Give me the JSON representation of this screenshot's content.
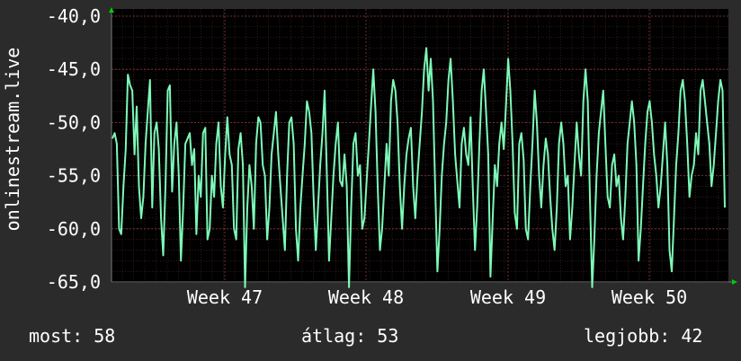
{
  "chart_data": {
    "type": "line",
    "ylabel": "onlinestream.live",
    "ylim": [
      -65,
      -40
    ],
    "y_ticks": [
      "-40,0",
      "-45,0",
      "-50,0",
      "-55,0",
      "-60,0",
      "-65,0"
    ],
    "x_ticks": [
      "Week 47",
      "Week 48",
      "Week 49",
      "Week 50"
    ],
    "grid": true,
    "colors": {
      "line": "#7df9b8",
      "plot_bg": "#000000",
      "page_bg": "#2b2b2b",
      "grid": "#5a2a2a",
      "axis_arrow": "#00cc00"
    },
    "series": [
      {
        "values": [
          -51.5,
          -51,
          -52,
          -60,
          -60.5,
          -56,
          -52.5,
          -45.5,
          -46.5,
          -47,
          -53,
          -48.5,
          -56,
          -59,
          -57,
          -52,
          -49,
          -46,
          -58,
          -51,
          -50,
          -52.5,
          -59,
          -62.5,
          -56,
          -47,
          -46.5,
          -56.5,
          -52,
          -50,
          -55,
          -63,
          -58,
          -52,
          -51.5,
          -51,
          -54,
          -52.5,
          -60.5,
          -55,
          -57,
          -51,
          -50.5,
          -61,
          -60,
          -55,
          -57,
          -52,
          -50,
          -56,
          -58,
          -53,
          -49.5,
          -53,
          -54,
          -60,
          -61,
          -52.5,
          -51,
          -54,
          -65.5,
          -58,
          -54,
          -56,
          -60,
          -52,
          -49.5,
          -50,
          -54,
          -55,
          -61,
          -58,
          -53,
          -51,
          -49,
          -53,
          -56,
          -59,
          -62,
          -55,
          -50,
          -49.5,
          -52,
          -60,
          -63,
          -58,
          -55,
          -52,
          -48,
          -49,
          -51,
          -57,
          -62,
          -58,
          -54,
          -51,
          -47,
          -55,
          -63,
          -59,
          -55,
          -52,
          -50,
          -55.5,
          -56,
          -53,
          -56,
          -65.5,
          -58,
          -52,
          -51,
          -55,
          -54,
          -60,
          -59,
          -55.5,
          -52,
          -48.5,
          -45,
          -49,
          -56,
          -62,
          -60,
          -56,
          -52,
          -55,
          -48,
          -46,
          -47,
          -50,
          -56,
          -60,
          -56,
          -53,
          -51.5,
          -50.5,
          -56,
          -59,
          -55,
          -52,
          -49,
          -45,
          -43,
          -47,
          -44,
          -48,
          -56,
          -64,
          -60,
          -55,
          -52,
          -50,
          -46,
          -44,
          -48,
          -53,
          -55.5,
          -58,
          -52,
          -50.5,
          -53,
          -54,
          -49.5,
          -56,
          -62,
          -58,
          -52,
          -47,
          -45,
          -49,
          -53,
          -64.5,
          -59,
          -54,
          -56,
          -52,
          -50,
          -52.5,
          -48.5,
          -44,
          -47,
          -52,
          -58.5,
          -60,
          -52,
          -51,
          -53.5,
          -60,
          -61,
          -56,
          -52,
          -47,
          -50,
          -55,
          -58,
          -54,
          -51.5,
          -53,
          -57,
          -60,
          -62,
          -58,
          -52,
          -50,
          -52,
          -56,
          -55,
          -61,
          -58,
          -54,
          -50,
          -53,
          -55,
          -48,
          -45,
          -48,
          -57,
          -65.5,
          -61,
          -55,
          -51,
          -49,
          -47,
          -52,
          -57,
          -58,
          -54,
          -53,
          -56,
          -55,
          -59,
          -61,
          -57,
          -52,
          -50,
          -48,
          -50,
          -54,
          -63,
          -60,
          -56,
          -52,
          -49,
          -48,
          -50,
          -53,
          -55,
          -58,
          -56,
          -53,
          -50,
          -54,
          -62,
          -64,
          -59,
          -54,
          -51,
          -47,
          -46,
          -48,
          -52,
          -57,
          -55,
          -54,
          -51,
          -53,
          -47,
          -46,
          -48,
          -50,
          -52,
          -56,
          -54,
          -51,
          -48,
          -46,
          -47,
          -58
        ]
      }
    ]
  },
  "footer": {
    "current": "most: 58",
    "average": "átlag: 53",
    "best": "legjobb: 42"
  }
}
